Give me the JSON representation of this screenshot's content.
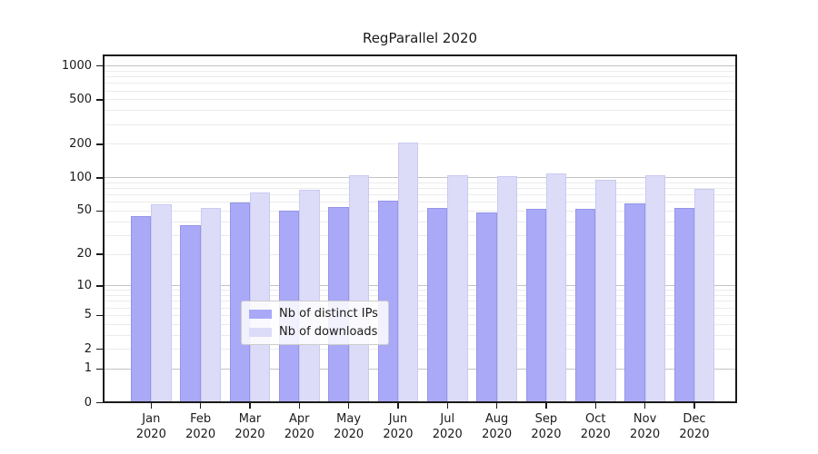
{
  "title": "RegParallel 2020",
  "chart_data": {
    "type": "bar",
    "title": "RegParallel 2020",
    "categories": [
      "Jan\n2020",
      "Feb\n2020",
      "Mar\n2020",
      "Apr\n2020",
      "May\n2020",
      "Jun\n2020",
      "Jul\n2020",
      "Aug\n2020",
      "Sep\n2020",
      "Oct\n2020",
      "Nov\n2020",
      "Dec\n2020"
    ],
    "series": [
      {
        "name": "Nb of distinct IPs",
        "color": "#a9a9f7",
        "edge_color": "#9595ea",
        "values": [
          45,
          37,
          60,
          50,
          54,
          62,
          53,
          49,
          52,
          52,
          59,
          53
        ]
      },
      {
        "name": "Nb of downloads",
        "color": "#dcdcf9",
        "edge_color": "#cacaf1",
        "values": [
          58,
          53,
          74,
          78,
          105,
          208,
          105,
          103,
          110,
          96,
          105,
          80
        ]
      }
    ],
    "yscale": "log1p",
    "ylim": [
      0,
      1265
    ],
    "yticks": [
      0,
      1,
      2,
      5,
      10,
      20,
      50,
      100,
      200,
      500,
      1000
    ],
    "major_gridlines": [
      1,
      10,
      100,
      1000
    ],
    "minor_gridlines": [
      2,
      3,
      4,
      5,
      6,
      7,
      8,
      9,
      20,
      30,
      40,
      50,
      60,
      70,
      80,
      90,
      200,
      300,
      400,
      500,
      600,
      700,
      800,
      900
    ],
    "grid_major_color": "#c3c3c3",
    "grid_minor_color": "#ebebeb",
    "spine_color": "#1a1a1a",
    "text_color": "#1a1a1a",
    "legend": {
      "position": "lower-center",
      "background": "rgba(255,255,255,0.85)",
      "border_color": "#cccccc"
    }
  }
}
